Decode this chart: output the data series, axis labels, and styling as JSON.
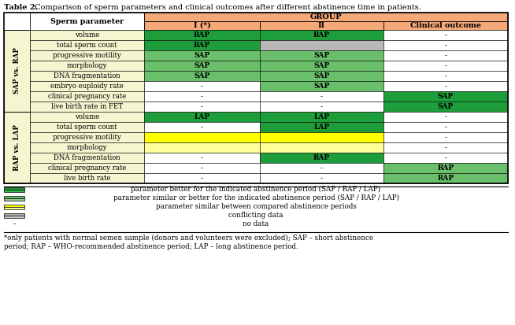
{
  "title_bold": "Table 2.",
  "title_rest": " Comparison of sperm parameters and clinical outcomes after different abstinence time in patients.",
  "header_group": "GROUP",
  "col_headers": [
    "I (*)",
    "II",
    "Clinical outcome"
  ],
  "row_group1_label": "SAP vs. RAP",
  "row_group2_label": "RAP vs. LAP",
  "sperm_param_label": "Sperm parameter",
  "group1_rows": [
    "volume",
    "total sperm count",
    "progressive motility",
    "morphology",
    "DNA fragmentation",
    "embryo euploidy rate",
    "clinical pregnancy rate",
    "live birth rate in FET"
  ],
  "group2_rows": [
    "volume",
    "total sperm count",
    "progressive motility",
    "morphology",
    "DNA fragmentation",
    "clinical pregnancy rate",
    "live birth rate"
  ],
  "cell_data_g1": [
    [
      {
        "text": "RAP",
        "color": "#1e9e3a"
      },
      {
        "text": "RAP",
        "color": "#1e9e3a"
      },
      {
        "text": "-",
        "color": "#ffffff"
      }
    ],
    [
      {
        "text": "RAP",
        "color": "#1e9e3a"
      },
      {
        "text": "",
        "color": "#b8b8b8"
      },
      {
        "text": "-",
        "color": "#ffffff"
      }
    ],
    [
      {
        "text": "SAP",
        "color": "#6abf6a"
      },
      {
        "text": "SAP",
        "color": "#6abf6a"
      },
      {
        "text": "-",
        "color": "#ffffff"
      }
    ],
    [
      {
        "text": "SAP",
        "color": "#6abf6a"
      },
      {
        "text": "SAP",
        "color": "#6abf6a"
      },
      {
        "text": "-",
        "color": "#ffffff"
      }
    ],
    [
      {
        "text": "SAP",
        "color": "#6abf6a"
      },
      {
        "text": "SAP",
        "color": "#6abf6a"
      },
      {
        "text": "-",
        "color": "#ffffff"
      }
    ],
    [
      {
        "text": "-",
        "color": "#ffffff"
      },
      {
        "text": "SAP",
        "color": "#6abf6a"
      },
      {
        "text": "-",
        "color": "#ffffff"
      }
    ],
    [
      {
        "text": "-",
        "color": "#ffffff"
      },
      {
        "text": "-",
        "color": "#ffffff"
      },
      {
        "text": "SAP",
        "color": "#1e9e3a"
      }
    ],
    [
      {
        "text": "-",
        "color": "#ffffff"
      },
      {
        "text": "-",
        "color": "#ffffff"
      },
      {
        "text": "SAP",
        "color": "#1e9e3a"
      }
    ]
  ],
  "cell_data_g2": [
    [
      {
        "text": "LAP",
        "color": "#1e9e3a"
      },
      {
        "text": "LAP",
        "color": "#1e9e3a"
      },
      {
        "text": "-",
        "color": "#ffffff"
      }
    ],
    [
      {
        "text": "-",
        "color": "#ffffff"
      },
      {
        "text": "LAP",
        "color": "#1e9e3a"
      },
      {
        "text": "-",
        "color": "#ffffff"
      }
    ],
    [
      {
        "text": "",
        "color": "#ffff00"
      },
      {
        "text": "",
        "color": "#ffff00"
      },
      {
        "text": "-",
        "color": "#ffffff"
      }
    ],
    [
      {
        "text": "",
        "color": "#ffff99"
      },
      {
        "text": "",
        "color": "#ffff99"
      },
      {
        "text": "-",
        "color": "#ffffff"
      }
    ],
    [
      {
        "text": "-",
        "color": "#ffffff"
      },
      {
        "text": "RAP",
        "color": "#1e9e3a"
      },
      {
        "text": "-",
        "color": "#ffffff"
      }
    ],
    [
      {
        "text": "-",
        "color": "#ffffff"
      },
      {
        "text": "-",
        "color": "#ffffff"
      },
      {
        "text": "RAP",
        "color": "#6abf6a"
      }
    ],
    [
      {
        "text": "-",
        "color": "#ffffff"
      },
      {
        "text": "-",
        "color": "#ffffff"
      },
      {
        "text": "RAP",
        "color": "#6abf6a"
      }
    ]
  ],
  "header_color": "#f5a878",
  "row_bg": "#f5f5d0",
  "legend_items": [
    {
      "colors": [
        "#1e9e3a",
        "#2db84d"
      ],
      "text": "parameter better for the indicated abstinence period (SAP / RAP / LAP)"
    },
    {
      "colors": [
        "#6abf6a",
        "#8fcc8f"
      ],
      "text": "parameter similar or better for the indicated abstinence period (SAP / RAP / LAP)"
    },
    {
      "colors": [
        "#ffff00",
        "#ffff99"
      ],
      "text": "parameter similar between compared abstinence periods"
    },
    {
      "colors": [
        "#b0b0b0",
        "#cccccc"
      ],
      "text": "conflicting data"
    },
    {
      "colors": [],
      "text": "no data"
    }
  ],
  "footnote": "*only patients with normal semen sample (donors and volunteers were excluded); SAP – short abstinence\nperiod; RAP – WHO-recommended abstinence period; LAP – long abstinence period."
}
